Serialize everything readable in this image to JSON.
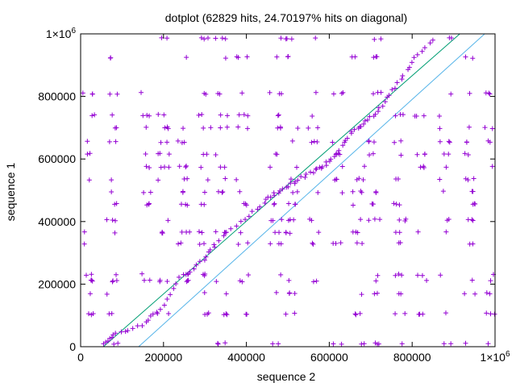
{
  "chart_data": {
    "type": "scatter",
    "title": "dotplot (62829 hits, 24.70197% hits on diagonal)",
    "xlabel": "sequence 2",
    "ylabel": "sequence 1",
    "xlim": [
      0,
      1000000
    ],
    "ylim": [
      0,
      1000000
    ],
    "x_ticks": [
      {
        "value": 0,
        "label": "0"
      },
      {
        "value": 200000,
        "label": "200000"
      },
      {
        "value": 400000,
        "label": "400000"
      },
      {
        "value": 600000,
        "label": "600000"
      },
      {
        "value": 800000,
        "label": "800000"
      },
      {
        "value": 1000000,
        "label": "1×10",
        "exp": "6"
      }
    ],
    "y_ticks": [
      {
        "value": 0,
        "label": "0"
      },
      {
        "value": 200000,
        "label": "200000"
      },
      {
        "value": 400000,
        "label": "400000"
      },
      {
        "value": 600000,
        "label": "600000"
      },
      {
        "value": 800000,
        "label": "800000"
      },
      {
        "value": 1000000,
        "label": "1×10",
        "exp": "6"
      }
    ],
    "grid": false,
    "legend": "none",
    "colors": {
      "points": "#9400d3",
      "upper_band": "#009e73",
      "lower_band": "#56b4e9",
      "axes": "#000000"
    },
    "band_lines": [
      {
        "from": [
          55000,
          0
        ],
        "to": [
          915000,
          1000000
        ],
        "color": "#009e73"
      },
      {
        "from": [
          140000,
          0
        ],
        "to": [
          975000,
          1000000
        ],
        "color": "#56b4e9"
      }
    ],
    "diagonal_hits": [
      [
        55000,
        10000
      ],
      [
        85000,
        40000
      ],
      [
        150000,
        70000
      ],
      [
        190000,
        120000
      ],
      [
        240000,
        220000
      ],
      [
        300000,
        280000
      ],
      [
        330000,
        340000
      ],
      [
        400000,
        410000
      ],
      [
        450000,
        470000
      ],
      [
        480000,
        500000
      ],
      [
        520000,
        530000
      ],
      [
        560000,
        560000
      ],
      [
        590000,
        580000
      ],
      [
        620000,
        620000
      ],
      [
        650000,
        680000
      ],
      [
        690000,
        720000
      ],
      [
        720000,
        760000
      ],
      [
        760000,
        830000
      ],
      [
        800000,
        910000
      ],
      [
        850000,
        980000
      ]
    ],
    "row_bands": [
      10000,
      105000,
      170000,
      210000,
      230000,
      330000,
      365000,
      405000,
      455000,
      495000,
      535000,
      575000,
      615000,
      655000,
      700000,
      740000,
      810000,
      925000,
      985000
    ],
    "column_bands": [
      20000,
      75000,
      160000,
      200000,
      250000,
      300000,
      340000,
      390000,
      470000,
      510000,
      560000,
      620000,
      670000,
      710000,
      770000,
      820000,
      880000,
      940000,
      990000
    ]
  }
}
